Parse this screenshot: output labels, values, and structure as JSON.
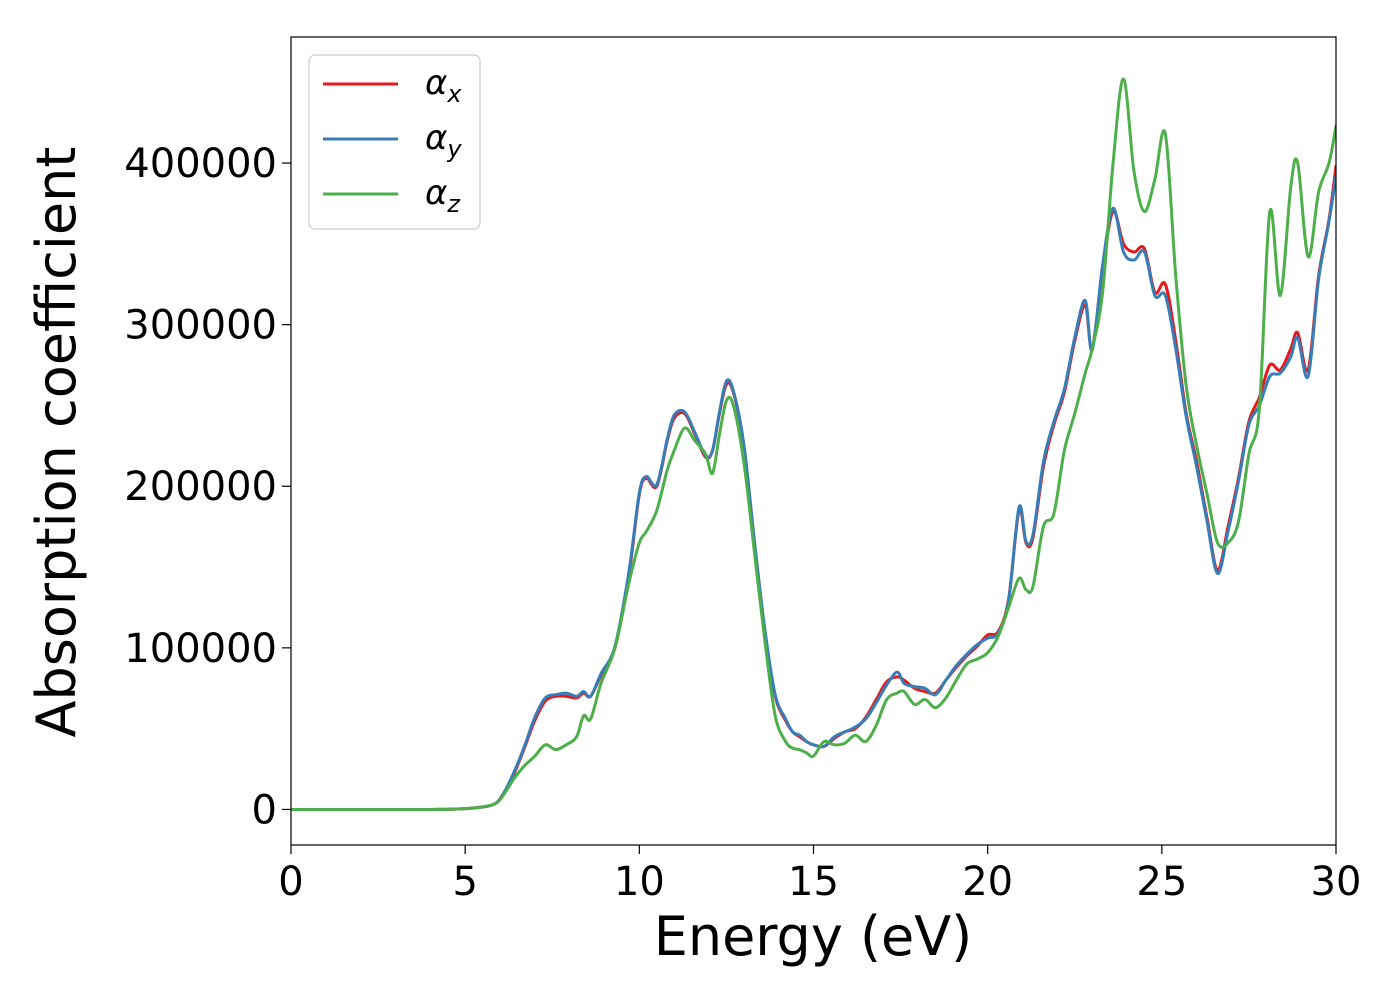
{
  "chart_data": {
    "type": "line",
    "title": "",
    "xlabel": "Energy (eV)",
    "ylabel": "Absorption coefficient",
    "xlim": [
      0,
      30
    ],
    "ylim": [
      -22000,
      478000
    ],
    "xticks": [
      "0",
      "5",
      "10",
      "15",
      "20",
      "25",
      "30"
    ],
    "xtick_values": [
      0,
      5,
      10,
      15,
      20,
      25,
      30
    ],
    "yticks": [
      "0",
      "100000",
      "200000",
      "300000",
      "400000"
    ],
    "ytick_values": [
      0,
      100000,
      200000,
      300000,
      400000
    ],
    "grid": false,
    "legend_position": "top-left",
    "series": [
      {
        "name": "α",
        "subscript": "x",
        "color": "#e41a1c",
        "x": [
          0,
          2,
          4,
          5,
          5.8,
          6.1,
          6.4,
          6.7,
          7.0,
          7.3,
          7.6,
          7.9,
          8.2,
          8.4,
          8.6,
          8.9,
          9.3,
          9.7,
          10.0,
          10.2,
          10.5,
          10.8,
          11.0,
          11.3,
          11.6,
          11.9,
          12.1,
          12.3,
          12.5,
          12.7,
          13.0,
          13.3,
          13.6,
          13.9,
          14.2,
          14.4,
          14.6,
          14.8,
          15.0,
          15.3,
          15.6,
          15.9,
          16.2,
          16.5,
          16.8,
          17.1,
          17.4,
          17.6,
          17.9,
          18.2,
          18.5,
          18.8,
          19.1,
          19.4,
          19.7,
          20.0,
          20.3,
          20.6,
          20.9,
          21.1,
          21.3,
          21.6,
          21.9,
          22.2,
          22.5,
          22.8,
          23.0,
          23.3,
          23.6,
          23.9,
          24.2,
          24.5,
          24.8,
          25.1,
          25.4,
          25.7,
          26.0,
          26.3,
          26.6,
          26.9,
          27.2,
          27.5,
          27.8,
          28.1,
          28.4,
          28.7,
          28.9,
          29.2,
          29.5,
          29.8,
          30.0
        ],
        "y": [
          0,
          0,
          0,
          500,
          3000,
          10000,
          22000,
          38000,
          55000,
          67000,
          70000,
          70000,
          69000,
          72000,
          70000,
          83000,
          100000,
          145000,
          195000,
          205000,
          200000,
          228000,
          242000,
          245000,
          232000,
          218000,
          222000,
          245000,
          263000,
          258000,
          225000,
          165000,
          110000,
          70000,
          55000,
          48000,
          45000,
          42000,
          40000,
          39000,
          44000,
          48000,
          50000,
          57000,
          68000,
          79000,
          82000,
          80000,
          75000,
          73000,
          72000,
          80000,
          88000,
          95000,
          101000,
          108000,
          110000,
          130000,
          185000,
          165000,
          168000,
          212000,
          238000,
          258000,
          290000,
          312000,
          285000,
          335000,
          370000,
          350000,
          345000,
          347000,
          320000,
          325000,
          290000,
          245000,
          215000,
          180000,
          148000,
          175000,
          205000,
          240000,
          255000,
          275000,
          272000,
          285000,
          295000,
          272000,
          330000,
          365000,
          398000
        ]
      },
      {
        "name": "α",
        "subscript": "y",
        "color": "#377eb8",
        "x": [
          0,
          2,
          4,
          5,
          5.8,
          6.1,
          6.4,
          6.7,
          7.0,
          7.3,
          7.6,
          7.9,
          8.2,
          8.4,
          8.6,
          8.9,
          9.3,
          9.7,
          10.0,
          10.2,
          10.5,
          10.8,
          11.0,
          11.3,
          11.6,
          11.9,
          12.1,
          12.3,
          12.5,
          12.7,
          13.0,
          13.3,
          13.6,
          13.9,
          14.2,
          14.4,
          14.6,
          14.8,
          15.0,
          15.3,
          15.6,
          15.9,
          16.2,
          16.5,
          16.8,
          17.1,
          17.4,
          17.6,
          17.9,
          18.2,
          18.5,
          18.8,
          19.1,
          19.4,
          19.7,
          20.0,
          20.3,
          20.6,
          20.9,
          21.1,
          21.3,
          21.6,
          21.9,
          22.2,
          22.5,
          22.8,
          23.0,
          23.3,
          23.6,
          23.9,
          24.2,
          24.5,
          24.8,
          25.1,
          25.4,
          25.7,
          26.0,
          26.3,
          26.6,
          26.9,
          27.2,
          27.5,
          27.8,
          28.1,
          28.4,
          28.7,
          28.9,
          29.2,
          29.5,
          29.8,
          30.0
        ],
        "y": [
          0,
          0,
          0,
          500,
          3000,
          10000,
          23000,
          39000,
          57000,
          69000,
          71000,
          72000,
          70000,
          73000,
          70000,
          84000,
          101000,
          147000,
          196000,
          206000,
          201000,
          229000,
          244000,
          246000,
          233000,
          219000,
          222000,
          246000,
          265000,
          259000,
          226000,
          167000,
          112000,
          71000,
          56000,
          48000,
          46000,
          42000,
          40000,
          39000,
          45000,
          48000,
          51000,
          56000,
          66000,
          77000,
          85000,
          78000,
          76000,
          75000,
          71000,
          80000,
          89000,
          96000,
          102000,
          106000,
          109000,
          129000,
          187000,
          166000,
          170000,
          215000,
          240000,
          260000,
          292000,
          315000,
          284000,
          337000,
          372000,
          345000,
          340000,
          345000,
          318000,
          318000,
          285000,
          243000,
          212000,
          178000,
          146000,
          172000,
          203000,
          238000,
          250000,
          268000,
          270000,
          280000,
          292000,
          268000,
          328000,
          364000,
          392000
        ]
      },
      {
        "name": "α",
        "subscript": "z",
        "color": "#4daf4a",
        "x": [
          0,
          2,
          4,
          5,
          5.8,
          6.1,
          6.4,
          6.7,
          7.0,
          7.3,
          7.6,
          7.9,
          8.2,
          8.4,
          8.6,
          8.9,
          9.3,
          9.7,
          10.0,
          10.2,
          10.5,
          10.8,
          11.0,
          11.3,
          11.6,
          11.9,
          12.1,
          12.3,
          12.5,
          12.7,
          13.0,
          13.3,
          13.6,
          13.9,
          14.2,
          14.4,
          14.6,
          14.8,
          15.0,
          15.3,
          15.6,
          15.9,
          16.2,
          16.5,
          16.8,
          17.1,
          17.4,
          17.6,
          17.9,
          18.2,
          18.5,
          18.8,
          19.1,
          19.4,
          19.7,
          20.0,
          20.3,
          20.6,
          20.9,
          21.1,
          21.3,
          21.6,
          21.9,
          22.2,
          22.5,
          22.8,
          23.0,
          23.3,
          23.6,
          23.9,
          24.2,
          24.5,
          24.8,
          25.1,
          25.4,
          25.7,
          26.0,
          26.3,
          26.6,
          26.9,
          27.2,
          27.5,
          27.8,
          28.1,
          28.4,
          28.7,
          28.9,
          29.2,
          29.5,
          29.8,
          30.0
        ],
        "y": [
          0,
          0,
          0,
          500,
          3000,
          9000,
          19000,
          27000,
          33000,
          40000,
          37000,
          40000,
          45000,
          58000,
          56000,
          78000,
          100000,
          140000,
          165000,
          172000,
          185000,
          210000,
          222000,
          236000,
          228000,
          220000,
          208000,
          232000,
          253000,
          250000,
          215000,
          160000,
          105000,
          58000,
          42000,
          38000,
          37000,
          35000,
          33000,
          42000,
          40000,
          41000,
          46000,
          42000,
          52000,
          68000,
          72000,
          73000,
          65000,
          68000,
          63000,
          69000,
          80000,
          90000,
          93000,
          97000,
          107000,
          125000,
          143000,
          136000,
          138000,
          175000,
          183000,
          222000,
          245000,
          270000,
          285000,
          320000,
          400000,
          452000,
          395000,
          370000,
          390000,
          418000,
          330000,
          262000,
          225000,
          195000,
          165000,
          165000,
          178000,
          220000,
          248000,
          370000,
          318000,
          385000,
          400000,
          342000,
          382000,
          400000,
          423000
        ]
      }
    ]
  }
}
